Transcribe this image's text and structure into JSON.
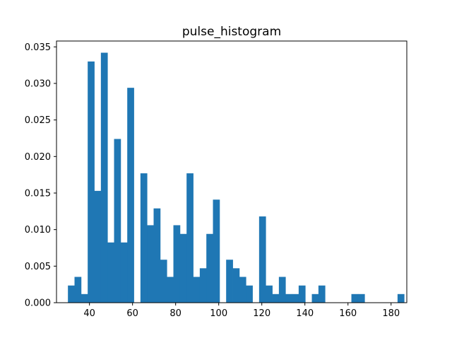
{
  "chart_data": {
    "type": "bar",
    "title": "pulse_histogram",
    "xlabel": "",
    "ylabel": "",
    "xlim": [
      24.7,
      187.3
    ],
    "ylim": [
      0,
      0.0358
    ],
    "bar_color": "#1f77b4",
    "bin_width": 3.06,
    "bin_start": 30,
    "values": [
      0.00235,
      0.00353,
      0.00118,
      0.033,
      0.0153,
      0.0342,
      0.00824,
      0.0224,
      0.00824,
      0.0294,
      0,
      0.0177,
      0.0106,
      0.0129,
      0.00588,
      0.00353,
      0.0106,
      0.00941,
      0.0177,
      0.00353,
      0.00471,
      0.00941,
      0.0141,
      0,
      0.00588,
      0.00471,
      0.00353,
      0.00235,
      0,
      0.0118,
      0.00235,
      0.00118,
      0.00353,
      0.00118,
      0.00118,
      0.00235,
      0,
      0.00118,
      0.00235,
      0,
      0,
      0,
      0,
      0.00118,
      0.00118,
      0,
      0,
      0,
      0,
      0,
      0.00118
    ],
    "x_ticks": [
      40,
      60,
      80,
      100,
      120,
      140,
      160,
      180
    ],
    "x_tick_labels": [
      "40",
      "60",
      "80",
      "100",
      "120",
      "140",
      "160",
      "180"
    ],
    "y_ticks": [
      0,
      0.005,
      0.01,
      0.015,
      0.02,
      0.025,
      0.03,
      0.035
    ],
    "y_tick_labels": [
      "0.000",
      "0.005",
      "0.010",
      "0.015",
      "0.020",
      "0.025",
      "0.030",
      "0.035"
    ],
    "grid": false,
    "legend": "none"
  }
}
